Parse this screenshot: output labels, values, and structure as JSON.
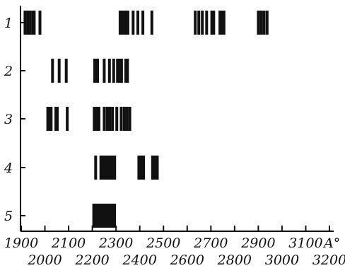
{
  "chart_data": {
    "type": "line-spectrum",
    "x_unit": "A°",
    "x_range": [
      1900,
      3200
    ],
    "x_ticks_top": [
      1900,
      2100,
      2300,
      2500,
      2700,
      2900,
      3100
    ],
    "x_ticks_bottom": [
      2000,
      2200,
      2400,
      2600,
      2800,
      3000,
      3200
    ],
    "rows": [
      {
        "label": "1",
        "lines": [
          1916,
          1927,
          1936,
          1948,
          1955,
          1979,
          2317,
          2325,
          2333,
          2340,
          2350,
          2372,
          2392,
          2413,
          2451,
          2634,
          2649,
          2664,
          2682,
          2704,
          2712,
          2738,
          2746,
          2755,
          2900,
          2912,
          2924,
          2937
        ]
      },
      {
        "label": "2",
        "lines": [
          2032,
          2060,
          2090,
          2210,
          2222,
          2250,
          2272,
          2290,
          2306,
          2312,
          2323,
          2341,
          2348
        ]
      },
      {
        "label": "3",
        "lines": [
          2012,
          2019,
          2026,
          2046,
          2052,
          2094,
          2208,
          2218,
          2228,
          2250,
          2263,
          2273,
          2285,
          2303,
          2322,
          2335,
          2346,
          2358
        ]
      },
      {
        "label": "4",
        "lines": [
          2214,
          2258,
          2272,
          2396,
          2406,
          2416,
          2454,
          2465,
          2474
        ]
      },
      {
        "label": "5",
        "lines": [
          2212,
          2222,
          2232,
          2242,
          2252,
          2262,
          2272,
          2280
        ]
      }
    ],
    "bands": [
      {
        "row": "4",
        "from": 2230,
        "to": 2300
      },
      {
        "row": "5",
        "from": 2200,
        "to": 2300
      }
    ]
  }
}
